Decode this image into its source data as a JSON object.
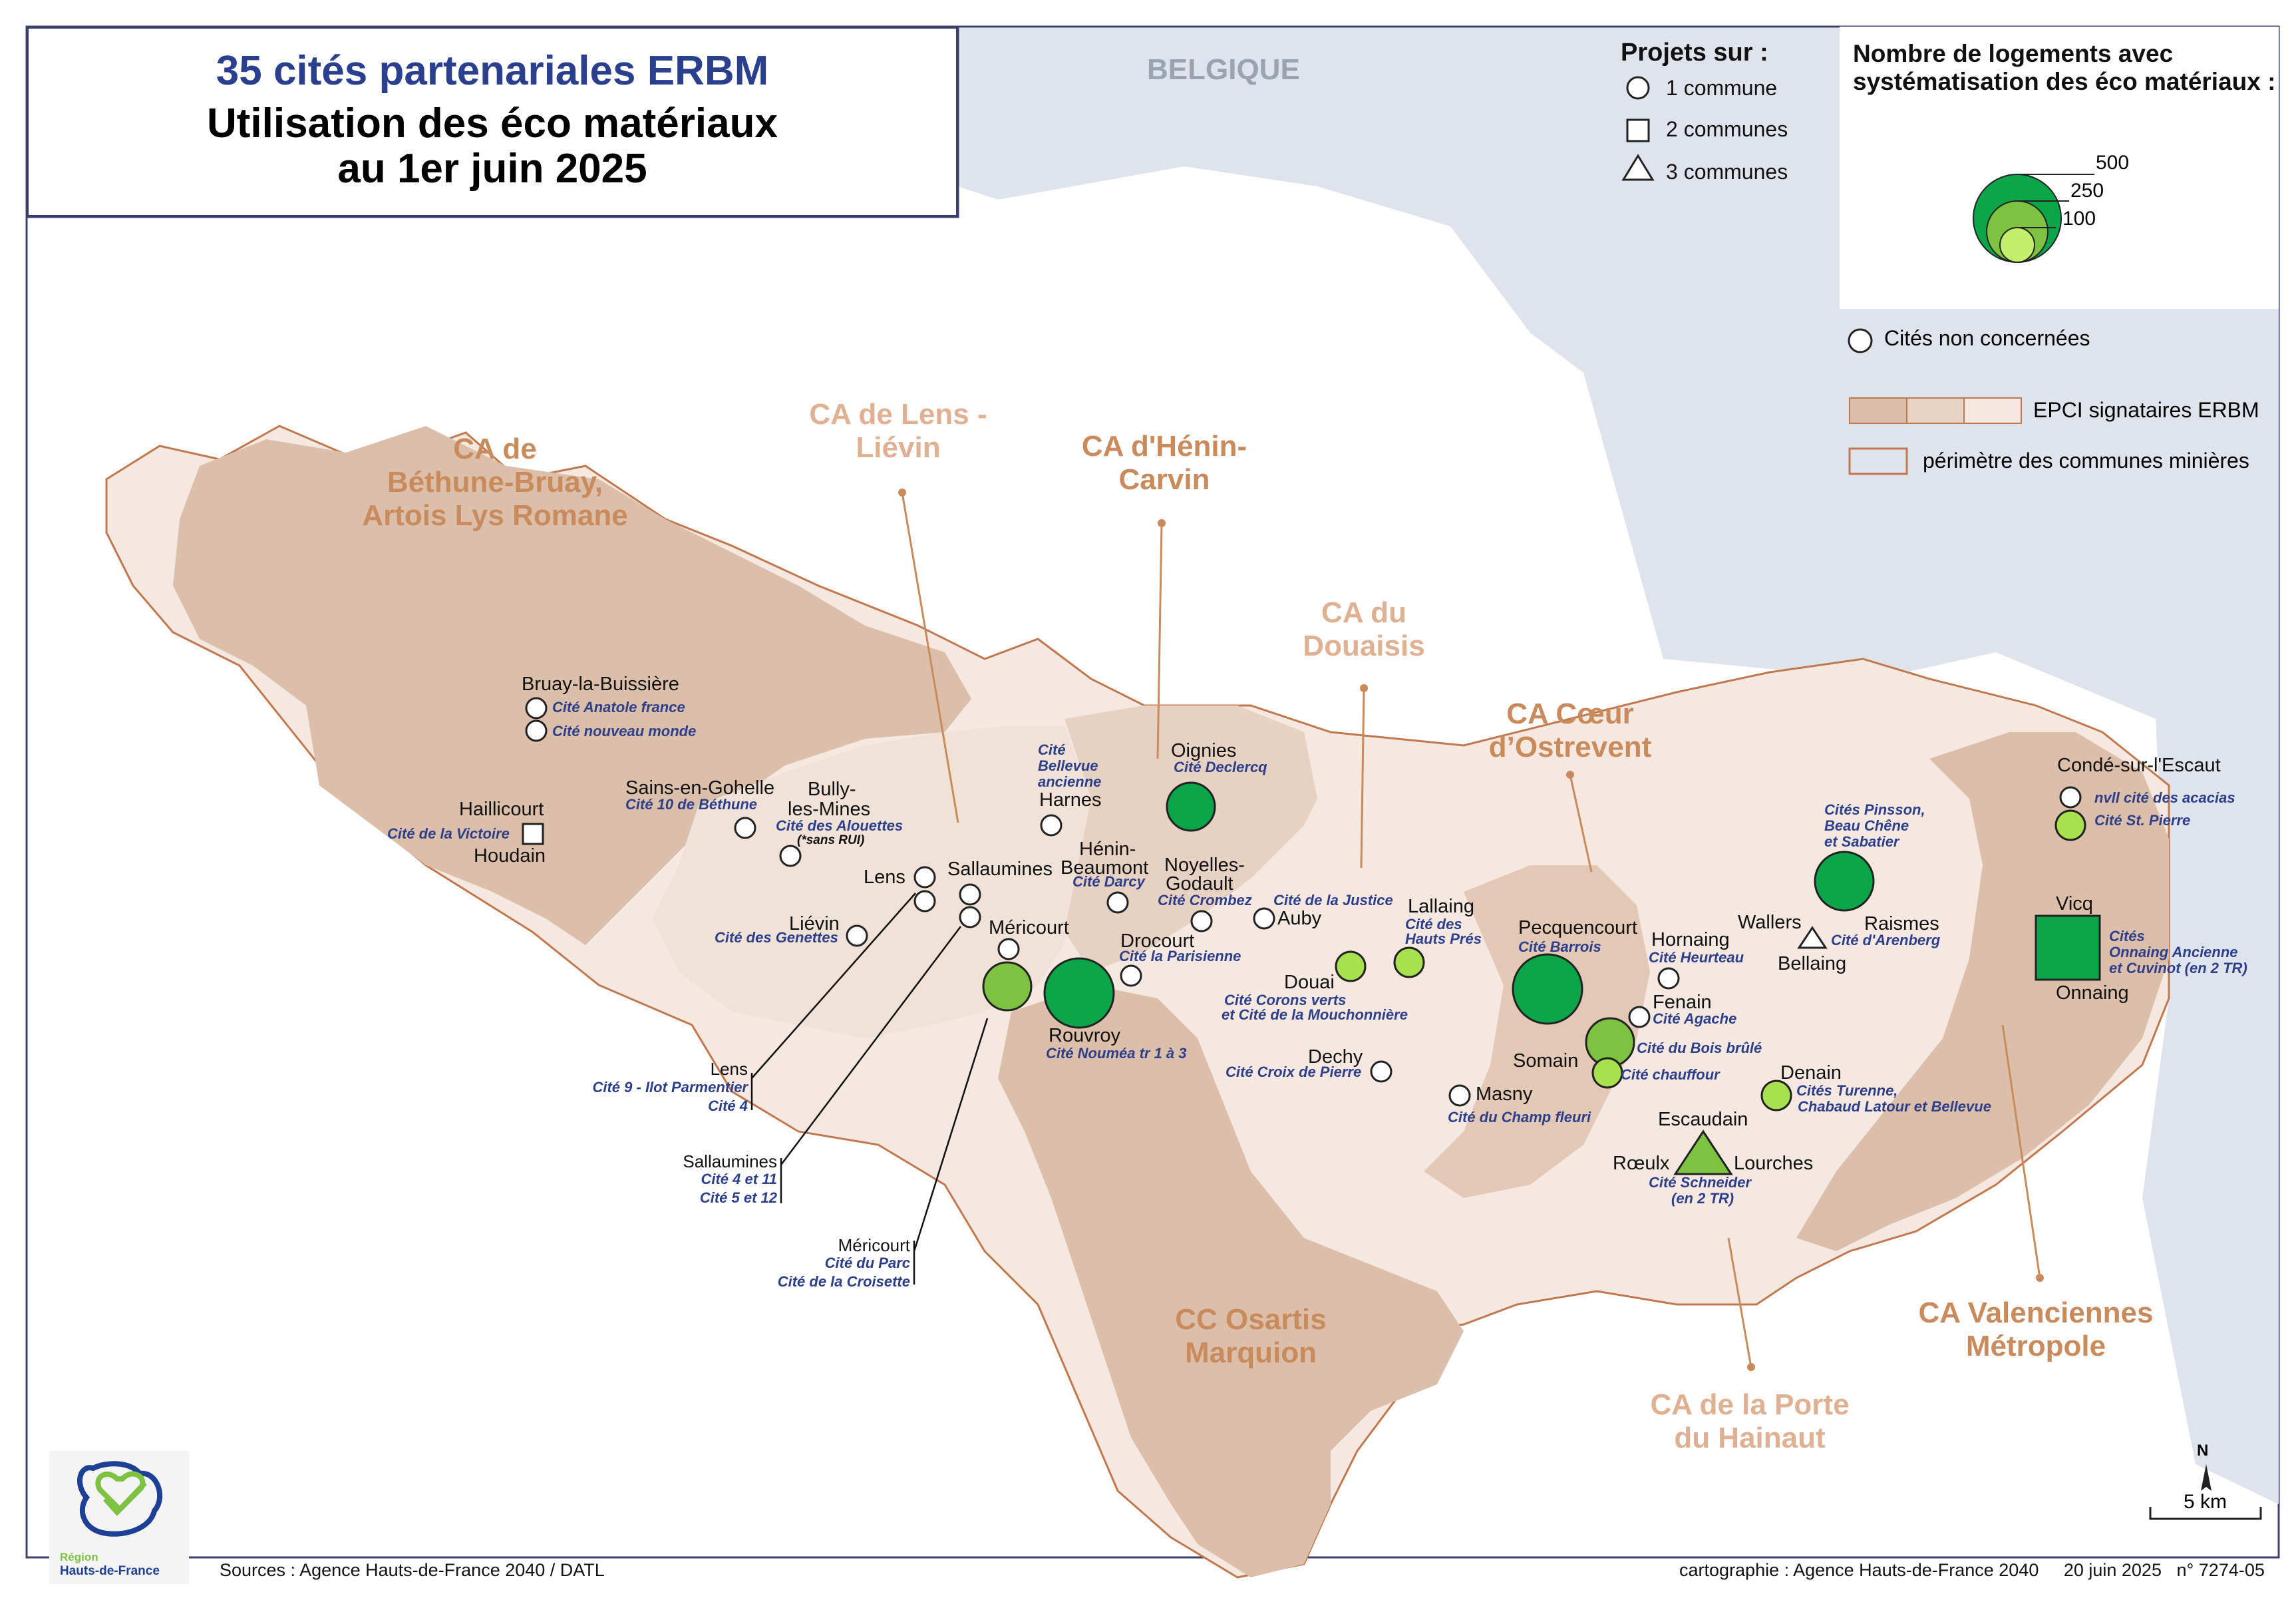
{
  "title": {
    "line1": "35 cités partenariales ERBM",
    "line2": "Utilisation des éco matériaux",
    "line3": "au 1er juin 2025"
  },
  "country_label": "BELGIQUE",
  "legend_projects": {
    "title": "Projets sur :",
    "items": [
      "1 commune",
      "2 communes",
      "3 communes"
    ]
  },
  "legend_size": {
    "title_line1": "Nombre de logements avec",
    "title_line2": "systématisation des éco matériaux :",
    "values": [
      "500",
      "250",
      "100"
    ]
  },
  "legend_other": {
    "non_concernees": "Cités non concernées",
    "epci": "EPCI signataires ERBM",
    "perimetre": "périmètre des communes minières"
  },
  "colors": {
    "dark_green": "#0ba64a",
    "mid_green": "#7ec242",
    "light_green": "#c4ef6a",
    "epci_dark": "#dcbfaa",
    "epci_mid": "#e9d3c4",
    "epci_light": "#f4e8e0",
    "outline": "#c0784e",
    "sea": "#dfe4ec",
    "epci_label": "#c98a5c",
    "epci_label_light": "#dfb092",
    "cite_blue": "#2d3f8a"
  },
  "epci_labels": {
    "bethune": [
      "CA de",
      "Béthune-Bruay,",
      "Artois Lys Romane"
    ],
    "lens": [
      "CA de Lens -",
      "Liévin"
    ],
    "henin": [
      "CA d'Hénin-",
      "Carvin"
    ],
    "douaisis": [
      "CA du",
      "Douaisis"
    ],
    "ostrevent": [
      "CA Cœur",
      "d’Ostrevent"
    ],
    "osartis": [
      "CC Osartis",
      "Marquion"
    ],
    "porte_hainaut": [
      "CA de la Porte",
      "du Hainaut"
    ],
    "valenciennes": [
      "CA Valenciennes",
      "Métropole"
    ]
  },
  "communes": [
    "Bruay-la-Buissière",
    "Haillicourt",
    "Houdain",
    "Sains-en-Gohelle",
    "Bully-",
    "les-Mines",
    "Liévin",
    "Lens",
    "Sallaumines",
    "Méricourt",
    "Harnes",
    "Oignies",
    "Hénin-",
    "Beaumont",
    "Noyelles-",
    "Godault",
    "Drocourt",
    "Rouvroy",
    "Auby",
    "Lallaing",
    "Douai",
    "Dechy",
    "Pecquencourt",
    "Hornaing",
    "Fenain",
    "Somain",
    "Masny",
    "Wallers",
    "Bellaing",
    "Raismes",
    "Escaudain",
    "Rœulx",
    "Lourches",
    "Denain",
    "Condé-sur-l'Escaut",
    "Vicq",
    "Onnaing"
  ],
  "cites": [
    "Cité Anatole france",
    "Cité nouveau monde",
    "Cité de la Victoire",
    "Cité 10 de Béthune",
    "Cité des Alouettes",
    "(*sans RUI)",
    "Cité des Genettes",
    "Cité",
    "Bellevue",
    "ancienne",
    "Cité Declercq",
    "Cité Darcy",
    "Cité Crombez",
    "Cité la Parisienne",
    "Cité Nouméa tr 1 à 3",
    "Cité de la Justice",
    "Cité des",
    "Hauts Prés",
    "Cité Corons verts",
    "et Cité de la Mouchonnière",
    "Cité Croix de Pierre",
    "Cité Barrois",
    "Cité Heurteau",
    "Cité Agache",
    "Cité du Bois brûlé",
    "Cité chauffour",
    "Cité du Champ fleuri",
    "Cités Pinsson,",
    "Beau Chêne",
    "et Sabatier",
    "Cité d'Arenberg",
    "Cités Turenne,",
    "Chabaud Latour et Bellevue",
    "Cité Schneider",
    "(en 2 TR)",
    "nvll cité des acacias",
    "Cité St. Pierre",
    "Cités",
    "Onnaing Ancienne",
    "et Cuvinot (en 2 TR)"
  ],
  "callouts": {
    "lens": [
      "Lens",
      "Cité 9 - Ilot Parmentier",
      "Cité 4"
    ],
    "sallaumines": [
      "Sallaumines",
      "Cité 4 et 11",
      "Cité 5 et 12"
    ],
    "mericourt": [
      "Méricourt",
      "Cité du Parc",
      "Cité de la Croisette"
    ]
  },
  "north": "N",
  "scale": "5 km",
  "logo_text": [
    "Région",
    "Hauts-de-France"
  ],
  "sources": "Sources : Agence Hauts-de-France 2040 / DATL",
  "credits": "cartographie : Agence Hauts-de-France 2040     20 juin 2025   n° 7274-05"
}
